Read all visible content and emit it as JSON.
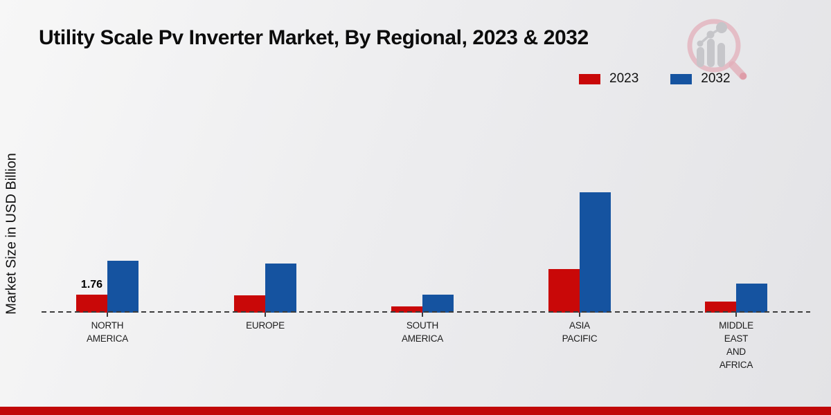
{
  "title": "Utility Scale Pv Inverter Market, By Regional, 2023 & 2032",
  "ylabel": "Market Size in USD Billion",
  "watermark_icon": "magnifier-bar-chart-logo",
  "colors": {
    "series_2023": "#c90808",
    "series_2032": "#1553a0",
    "bottom_strip": "#c10808",
    "axis": "#3c3c3c"
  },
  "legend": {
    "position": "top-right",
    "items": [
      {
        "label": "2023",
        "color": "#c90808"
      },
      {
        "label": "2032",
        "color": "#1553a0"
      }
    ]
  },
  "chart_data": {
    "type": "bar",
    "title": "Utility Scale Pv Inverter Market, By Regional, 2023 & 2032",
    "xlabel": "",
    "ylabel": "Market Size in USD Billion",
    "categories": [
      "NORTH AMERICA",
      "EUROPE",
      "SOUTH AMERICA",
      "ASIA PACIFIC",
      "MIDDLE EAST AND AFRICA"
    ],
    "category_label_lines": [
      [
        "NORTH",
        "AMERICA"
      ],
      [
        "EUROPE"
      ],
      [
        "SOUTH",
        "AMERICA"
      ],
      [
        "ASIA",
        "PACIFIC"
      ],
      [
        "MIDDLE",
        "EAST",
        "AND",
        "AFRICA"
      ]
    ],
    "series": [
      {
        "name": "2023",
        "color": "#c90808",
        "values": [
          1.76,
          1.7,
          0.6,
          4.25,
          1.05
        ]
      },
      {
        "name": "2032",
        "color": "#1553a0",
        "values": [
          5.08,
          4.8,
          1.75,
          11.8,
          2.85
        ]
      }
    ],
    "bar_value_labels": [
      {
        "series_index": 0,
        "category_index": 0,
        "text": "1.76"
      }
    ],
    "ylim": [
      0,
      12.5
    ],
    "grid": false,
    "value_axis_ticks_visible": false,
    "legend_position": "top-right"
  }
}
